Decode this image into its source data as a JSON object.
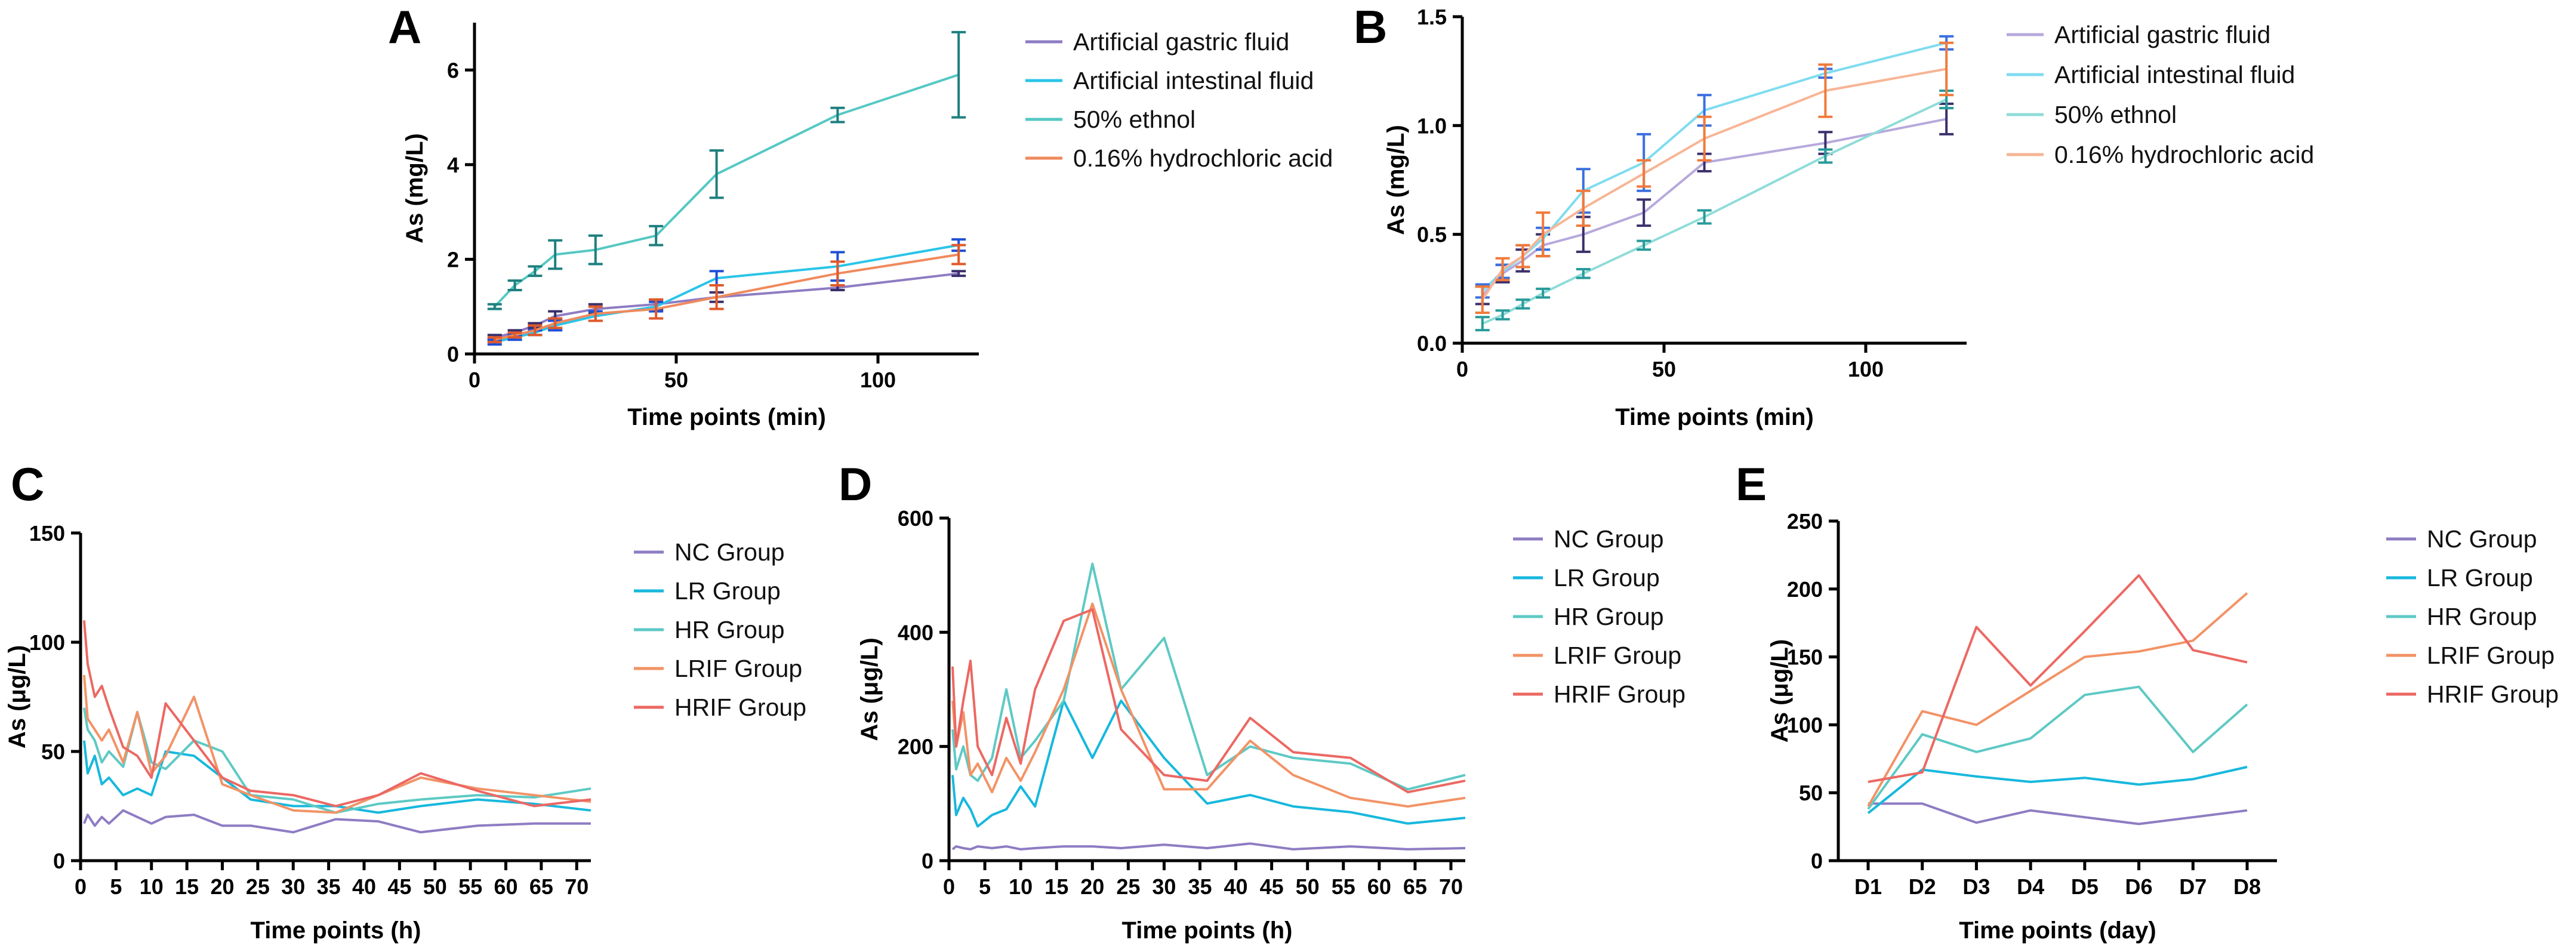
{
  "chart_data": [
    {
      "panel": "A",
      "type": "line",
      "xlabel": "Time points (min)",
      "ylabel": "As (mg/L)",
      "xlim": [
        0,
        125
      ],
      "ylim": [
        0,
        7
      ],
      "xticks": [
        0,
        50,
        100
      ],
      "yticks": [
        0,
        2,
        4,
        6
      ],
      "x": [
        5,
        10,
        15,
        20,
        30,
        45,
        60,
        90,
        120
      ],
      "legend_position": "top-right",
      "series": [
        {
          "name": "Artificial gastric fluid",
          "color": "#8e7cc3",
          "bar_color": "#3b2f6b",
          "values": [
            0.35,
            0.45,
            0.6,
            0.8,
            0.95,
            1.05,
            1.2,
            1.4,
            1.7
          ],
          "errors": [
            0.05,
            0.05,
            0.05,
            0.1,
            0.1,
            0.1,
            0.1,
            0.05,
            0.05
          ]
        },
        {
          "name": "Artificial intestinal fluid",
          "color": "#2bc4e8",
          "bar_color": "#1f4fd6",
          "values": [
            0.25,
            0.35,
            0.45,
            0.6,
            0.8,
            1.0,
            1.6,
            1.85,
            2.3
          ],
          "errors": [
            0.05,
            0.05,
            0.05,
            0.1,
            0.1,
            0.1,
            0.15,
            0.3,
            0.12
          ]
        },
        {
          "name": "50% ethnol",
          "color": "#55c8c3",
          "bar_color": "#1e7f7f",
          "values": [
            1.0,
            1.45,
            1.75,
            2.1,
            2.2,
            2.5,
            3.8,
            5.05,
            5.9
          ],
          "errors": [
            0.05,
            0.1,
            0.1,
            0.3,
            0.3,
            0.2,
            0.5,
            0.15,
            0.9
          ]
        },
        {
          "name": "0.16% hydrochloric acid",
          "color": "#f08a5d",
          "bar_color": "#e05a2a",
          "values": [
            0.3,
            0.4,
            0.5,
            0.65,
            0.85,
            0.95,
            1.2,
            1.7,
            2.1
          ],
          "errors": [
            0.05,
            0.05,
            0.1,
            0.1,
            0.15,
            0.2,
            0.25,
            0.25,
            0.2
          ]
        }
      ]
    },
    {
      "panel": "B",
      "type": "line",
      "xlabel": "Time points (min)",
      "ylabel": "As (mg/L)",
      "xlim": [
        0,
        125
      ],
      "ylim": [
        0,
        1.5
      ],
      "xticks": [
        0,
        50,
        100
      ],
      "yticks": [
        0.0,
        0.5,
        1.0,
        1.5
      ],
      "ytick_labels": [
        "0.0",
        "0.5",
        "1.0",
        "1.5"
      ],
      "x": [
        5,
        10,
        15,
        20,
        30,
        45,
        60,
        90,
        120
      ],
      "legend_position": "top-right",
      "series": [
        {
          "name": "Artificial gastric fluid",
          "color": "#b7a9dc",
          "bar_color": "#3b2f6b",
          "values": [
            0.22,
            0.32,
            0.38,
            0.45,
            0.5,
            0.6,
            0.83,
            0.92,
            1.03
          ],
          "errors": [
            0.04,
            0.04,
            0.05,
            0.05,
            0.08,
            0.06,
            0.04,
            0.05,
            0.07
          ]
        },
        {
          "name": "Artificial intestinal fluid",
          "color": "#7fdcf0",
          "bar_color": "#3a6fe0",
          "values": [
            0.24,
            0.33,
            0.4,
            0.48,
            0.7,
            0.83,
            1.07,
            1.24,
            1.38
          ],
          "errors": [
            0.03,
            0.03,
            0.05,
            0.05,
            0.1,
            0.13,
            0.07,
            0.02,
            0.03
          ]
        },
        {
          "name": "50% ethnol",
          "color": "#8fdcd8",
          "bar_color": "#2a9a9a",
          "values": [
            0.09,
            0.13,
            0.18,
            0.23,
            0.32,
            0.45,
            0.58,
            0.86,
            1.12
          ],
          "errors": [
            0.03,
            0.02,
            0.02,
            0.02,
            0.02,
            0.02,
            0.03,
            0.03,
            0.04
          ]
        },
        {
          "name": "0.16% hydrochloric acid",
          "color": "#f7b595",
          "bar_color": "#f07a3a",
          "values": [
            0.2,
            0.34,
            0.4,
            0.5,
            0.62,
            0.78,
            0.94,
            1.16,
            1.26
          ],
          "errors": [
            0.06,
            0.05,
            0.05,
            0.1,
            0.08,
            0.06,
            0.1,
            0.12,
            0.12
          ]
        }
      ]
    },
    {
      "panel": "C",
      "type": "line",
      "xlabel": "Time points (h)",
      "ylabel": "As (μg/L)",
      "xlim": [
        0,
        72
      ],
      "ylim": [
        0,
        150
      ],
      "xticks": [
        0,
        5,
        10,
        15,
        20,
        25,
        30,
        35,
        40,
        45,
        50,
        55,
        60,
        65,
        70
      ],
      "yticks": [
        0,
        50,
        100,
        150
      ],
      "x": [
        0.5,
        1,
        2,
        3,
        4,
        6,
        8,
        10,
        12,
        16,
        20,
        24,
        30,
        36,
        42,
        48,
        56,
        64,
        72
      ],
      "legend_position": "right",
      "series": [
        {
          "name": "NC Group",
          "color": "#8e7cc3",
          "values": [
            17,
            21,
            16,
            20,
            17,
            23,
            20,
            17,
            20,
            21,
            16,
            16,
            13,
            19,
            18,
            13,
            16,
            17,
            17
          ]
        },
        {
          "name": "LR Group",
          "color": "#17b8dd",
          "values": [
            55,
            40,
            48,
            35,
            38,
            30,
            33,
            30,
            50,
            48,
            38,
            28,
            25,
            25,
            22,
            25,
            28,
            26,
            23
          ]
        },
        {
          "name": "HR Group",
          "color": "#5ec9c4",
          "values": [
            70,
            60,
            55,
            45,
            50,
            43,
            68,
            45,
            42,
            55,
            50,
            30,
            28,
            22,
            26,
            28,
            30,
            29,
            33
          ]
        },
        {
          "name": "LRIF Group",
          "color": "#f29366",
          "values": [
            85,
            65,
            60,
            55,
            60,
            45,
            68,
            40,
            48,
            75,
            35,
            30,
            23,
            22,
            30,
            38,
            33,
            30,
            27
          ]
        },
        {
          "name": "HRIF Group",
          "color": "#ec6863",
          "values": [
            110,
            90,
            75,
            80,
            70,
            52,
            48,
            38,
            72,
            55,
            38,
            32,
            30,
            25,
            30,
            40,
            32,
            25,
            28
          ]
        }
      ]
    },
    {
      "panel": "D",
      "type": "line",
      "xlabel": "Time points (h)",
      "ylabel": "As (μg/L)",
      "xlim": [
        0,
        72
      ],
      "ylim": [
        0,
        600
      ],
      "xticks": [
        0,
        5,
        10,
        15,
        20,
        25,
        30,
        35,
        40,
        45,
        50,
        55,
        60,
        65,
        70
      ],
      "yticks": [
        0,
        200,
        400,
        600
      ],
      "x": [
        0.5,
        1,
        2,
        3,
        4,
        6,
        8,
        10,
        12,
        16,
        20,
        24,
        30,
        36,
        42,
        48,
        56,
        64,
        72
      ],
      "legend_position": "right",
      "series": [
        {
          "name": "NC Group",
          "color": "#8e7cc3",
          "values": [
            20,
            25,
            22,
            20,
            25,
            22,
            25,
            20,
            22,
            25,
            25,
            22,
            28,
            22,
            30,
            20,
            25,
            20,
            22
          ]
        },
        {
          "name": "LR Group",
          "color": "#17b8dd",
          "values": [
            150,
            80,
            110,
            90,
            60,
            80,
            90,
            130,
            95,
            280,
            180,
            280,
            180,
            100,
            115,
            95,
            85,
            65,
            75
          ]
        },
        {
          "name": "HR Group",
          "color": "#5ec9c4",
          "values": [
            230,
            160,
            200,
            150,
            140,
            180,
            300,
            180,
            210,
            280,
            520,
            300,
            390,
            150,
            200,
            180,
            170,
            125,
            150
          ]
        },
        {
          "name": "LRIF Group",
          "color": "#f29366",
          "values": [
            280,
            200,
            260,
            150,
            170,
            120,
            180,
            140,
            190,
            300,
            450,
            300,
            125,
            125,
            210,
            150,
            110,
            95,
            110
          ]
        },
        {
          "name": "HRIF Group",
          "color": "#ec6863",
          "values": [
            340,
            200,
            280,
            350,
            200,
            150,
            250,
            170,
            300,
            420,
            440,
            230,
            150,
            140,
            250,
            190,
            180,
            120,
            140
          ]
        }
      ]
    },
    {
      "panel": "E",
      "type": "line",
      "xlabel": "Time points (day)",
      "ylabel": "As (μg/L)",
      "categories": [
        "D1",
        "D2",
        "D3",
        "D4",
        "D5",
        "D6",
        "D7",
        "D8"
      ],
      "ylim": [
        0,
        250
      ],
      "yticks": [
        0,
        50,
        100,
        150,
        200,
        250
      ],
      "legend_position": "right",
      "series": [
        {
          "name": "NC Group",
          "color": "#8e7cc3",
          "values": [
            42,
            42,
            28,
            37,
            32,
            27,
            32,
            37
          ]
        },
        {
          "name": "LR Group",
          "color": "#17b8dd",
          "values": [
            35,
            67,
            62,
            58,
            61,
            56,
            60,
            69
          ]
        },
        {
          "name": "HR Group",
          "color": "#5ec9c4",
          "values": [
            38,
            93,
            80,
            90,
            122,
            128,
            80,
            115
          ]
        },
        {
          "name": "LRIF Group",
          "color": "#f29366",
          "values": [
            40,
            110,
            100,
            125,
            150,
            154,
            162,
            197
          ]
        },
        {
          "name": "HRIF Group",
          "color": "#ec6863",
          "values": [
            58,
            65,
            172,
            129,
            169,
            210,
            155,
            146
          ]
        }
      ]
    }
  ]
}
